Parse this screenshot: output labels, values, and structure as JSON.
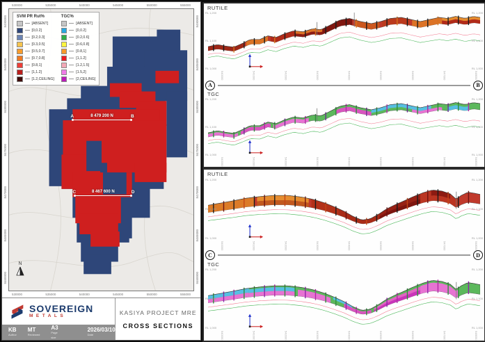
{
  "map": {
    "legend": {
      "columns": [
        {
          "title": "SVM PR Rut%",
          "items": [
            {
              "label": "[ABSENT]",
              "color": "#c6c6c6"
            },
            {
              "label": "[0,0.2]",
              "color": "#2e4679"
            },
            {
              "label": "[0.2,0.3]",
              "color": "#6b84b4"
            },
            {
              "label": "[0.3,0.5]",
              "color": "#f6c44f"
            },
            {
              "label": "[0.5,0.7]",
              "color": "#f79c2d"
            },
            {
              "label": "[0.7,0.8]",
              "color": "#ef7a21"
            },
            {
              "label": "[0.8,1]",
              "color": "#ee3f38"
            },
            {
              "label": "[1,1.2]",
              "color": "#bc1f1c"
            },
            {
              "label": "[1.2,CEILING]",
              "color": "#3f0d0a"
            }
          ]
        },
        {
          "title": "TGC%",
          "items": [
            {
              "label": "[ABSENT]",
              "color": "#c6c6c6"
            },
            {
              "label": "[0,0.2]",
              "color": "#29a8e0"
            },
            {
              "label": "[0.2,0.6]",
              "color": "#2fae49"
            },
            {
              "label": "[0.6,0.8]",
              "color": "#fdf53f"
            },
            {
              "label": "[0.8,1]",
              "color": "#f79a2b"
            },
            {
              "label": "[1,1.2]",
              "color": "#ee1c23"
            },
            {
              "label": "[1.2,1.5]",
              "color": "#f3a8b6"
            },
            {
              "label": "[1.5,2]",
              "color": "#ef7ce8"
            },
            {
              "label": "[2,CEILING]",
              "color": "#bb1cba"
            }
          ]
        }
      ]
    },
    "axes": {
      "top": [
        "530000",
        "535000",
        "540000",
        "545000",
        "550000",
        "555000"
      ],
      "bottom": [
        "530000",
        "535000",
        "540000",
        "545000",
        "550000",
        "555000"
      ],
      "left": [
        "8490000",
        "8485000",
        "8480000",
        "8475000",
        "8470000",
        "8465000",
        "8460000"
      ],
      "right": [
        "8490000",
        "8485000",
        "8480000",
        "8475000",
        "8470000",
        "8465000",
        "8460000"
      ]
    },
    "sections": [
      {
        "from": "A",
        "to": "B",
        "label": "8 479 200 N"
      },
      {
        "from": "C",
        "to": "D",
        "label": "8 467 600 N"
      }
    ],
    "north": "N"
  },
  "title_block": {
    "logo": {
      "name": "SOVEREIGN",
      "sub": "METALS"
    },
    "project": "KASIYA PROJECT MRE",
    "drawing": "CROSS SECTIONS",
    "footer": [
      {
        "value": "KB",
        "label": "Author"
      },
      {
        "value": "MT",
        "label": "Reviewed"
      },
      {
        "value": "A3",
        "label": "Page size"
      },
      {
        "value": "2026/03/10",
        "label": "Date"
      }
    ]
  },
  "cross_sections": {
    "groups": [
      {
        "from": "A",
        "to": "B",
        "panels": [
          {
            "title": "RUTILE",
            "rl_left": [
              "RL 1,200",
              "RL 1,100",
              "RL 1,000"
            ],
            "rl_right": [
              "RL 1,200",
              "RL 1,100",
              "RL 1,000"
            ],
            "ticks": [
              "540000",
              "541000",
              "542000",
              "543000",
              "544000",
              "545000",
              "546000",
              "547000",
              "548000"
            ]
          },
          {
            "title": "TGC",
            "rl_left": [
              "RL 1,200",
              "RL 1,100",
              "RL 1,000"
            ],
            "rl_right": [
              "RL 1,200",
              "RL 1,100",
              "RL 1,000"
            ],
            "ticks": [
              "540000",
              "541000",
              "542000",
              "543000",
              "544000",
              "545000",
              "546000",
              "547000",
              "548000"
            ]
          }
        ]
      },
      {
        "from": "C",
        "to": "D",
        "panels": [
          {
            "title": "RUTILE",
            "rl_left": [
              "RL 1,200",
              "RL 1,100",
              "RL 1,000"
            ],
            "rl_right": [
              "RL 1,200",
              "RL 1,100",
              "RL 1,000"
            ],
            "ticks": [
              "540000",
              "541000",
              "542000",
              "543000",
              "544000",
              "545000",
              "546000",
              "547000",
              "548000"
            ]
          },
          {
            "title": "TGC",
            "rl_left": [
              "RL 1,200",
              "RL 1,100",
              "RL 1,000"
            ],
            "rl_right": [
              "RL 1,200",
              "RL 1,100",
              "RL 1,000"
            ],
            "ticks": [
              "540000",
              "541000",
              "542000",
              "543000",
              "544000",
              "545000",
              "546000",
              "547000",
              "548000"
            ]
          }
        ]
      }
    ]
  }
}
